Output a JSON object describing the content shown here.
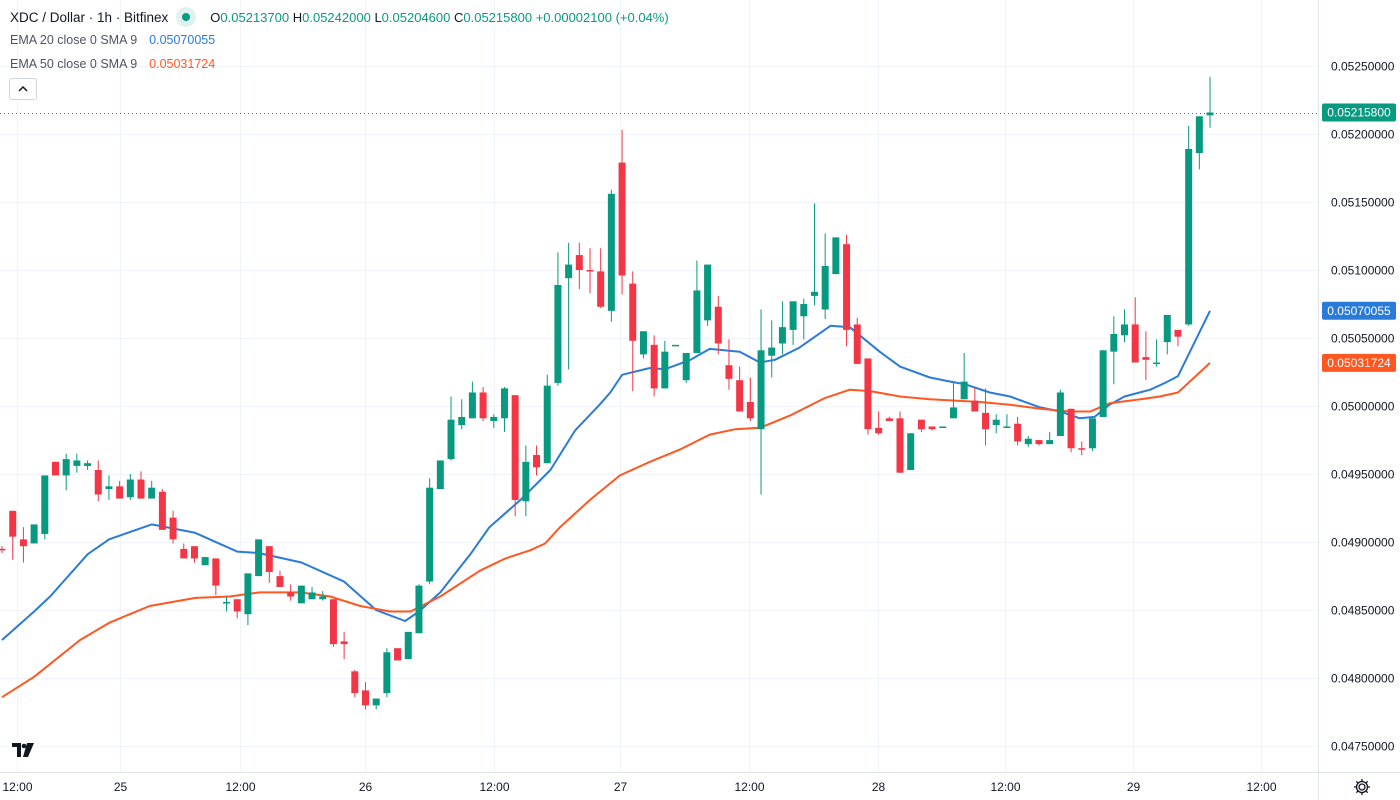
{
  "header": {
    "title": "XDC / Dollar · 1h · Bitfinex",
    "ohlc": [
      {
        "key": "O",
        "value": "0.05213700"
      },
      {
        "key": "H",
        "value": "0.05242000"
      },
      {
        "key": "L",
        "value": "0.05204600"
      },
      {
        "key": "C",
        "value": "0.05215800"
      }
    ],
    "change": "+0.00002100 (+0.04%)"
  },
  "legend": [
    {
      "name": "EMA 20 close 0 SMA 9",
      "value": "0.05070055",
      "color": "#2a7bd8"
    },
    {
      "name": "EMA 50 close 0 SMA 9",
      "value": "0.05031724",
      "color": "#ff5722"
    }
  ],
  "icons": {
    "collapse": "chevron-up-icon",
    "logo": "tradingview-logo",
    "settings": "gear-icon"
  },
  "logo_text": "17",
  "colors": {
    "up": "#089981",
    "down": "#f23645",
    "ema20": "#2a7bd8",
    "ema50": "#ff5722",
    "grid": "#f0f3fa"
  },
  "chart_data": {
    "type": "candlestick",
    "title": "XDC / Dollar · 1h · Bitfinex",
    "interval": "1h",
    "ylim": [
      0.04731,
      0.052985
    ],
    "xlim": [
      -0.19,
      123.1
    ],
    "grid": true,
    "yticks": [
      "0.04750000",
      "0.04800000",
      "0.04850000",
      "0.04900000",
      "0.04950000",
      "0.05000000",
      "0.05050000",
      "0.05100000",
      "0.05150000",
      "0.05200000",
      "0.05250000"
    ],
    "xticks": [
      {
        "label": "12:00",
        "at": 1.4
      },
      {
        "label": "25",
        "at": 11
      },
      {
        "label": "12:00",
        "at": 22.3
      },
      {
        "label": "26",
        "at": 34
      },
      {
        "label": "12:00",
        "at": 46
      },
      {
        "label": "27",
        "at": 57.8
      },
      {
        "label": "12:00",
        "at": 69.9
      },
      {
        "label": "28",
        "at": 81.9
      },
      {
        "label": "12:00",
        "at": 93.8
      },
      {
        "label": "29",
        "at": 105.8
      },
      {
        "label": "12:00",
        "at": 117.8
      }
    ],
    "last_price": {
      "value": 0.052158,
      "label": "0.05215800"
    },
    "candles_format": [
      "open",
      "high",
      "low",
      "close"
    ],
    "candles": [
      [
        0.04895,
        0.04897,
        0.04892,
        0.04894
      ],
      [
        0.04923,
        0.04923,
        0.04887,
        0.04904
      ],
      [
        0.04902,
        0.04911,
        0.04885,
        0.04897
      ],
      [
        0.04899,
        0.04913,
        0.04899,
        0.04913
      ],
      [
        0.04906,
        0.04949,
        0.04902,
        0.04949
      ],
      [
        0.04959,
        0.04959,
        0.04949,
        0.04949
      ],
      [
        0.04949,
        0.04965,
        0.04938,
        0.04961
      ],
      [
        0.04956,
        0.04965,
        0.04951,
        0.0496
      ],
      [
        0.04956,
        0.0496,
        0.04953,
        0.04958
      ],
      [
        0.04953,
        0.0496,
        0.0493,
        0.04935
      ],
      [
        0.04939,
        0.04949,
        0.04931,
        0.04941
      ],
      [
        0.04941,
        0.04945,
        0.04932,
        0.04932
      ],
      [
        0.04933,
        0.0495,
        0.04931,
        0.04946
      ],
      [
        0.04946,
        0.04952,
        0.04932,
        0.04932
      ],
      [
        0.04932,
        0.04945,
        0.04932,
        0.0494
      ],
      [
        0.04937,
        0.04939,
        0.04909,
        0.04909
      ],
      [
        0.04918,
        0.04923,
        0.04899,
        0.04902
      ],
      [
        0.04895,
        0.04899,
        0.04888,
        0.04888
      ],
      [
        0.04897,
        0.04897,
        0.04885,
        0.04888
      ],
      [
        0.04883,
        0.04889,
        0.04883,
        0.04889
      ],
      [
        0.04888,
        0.04888,
        0.04861,
        0.04868
      ],
      [
        0.04855,
        0.0486,
        0.04849,
        0.04856
      ],
      [
        0.04858,
        0.04858,
        0.04844,
        0.04849
      ],
      [
        0.04847,
        0.04877,
        0.04839,
        0.04877
      ],
      [
        0.04875,
        0.04902,
        0.04875,
        0.04902
      ],
      [
        0.04897,
        0.04897,
        0.0487,
        0.04878
      ],
      [
        0.04875,
        0.04879,
        0.04867,
        0.04867
      ],
      [
        0.04863,
        0.04869,
        0.04857,
        0.0486
      ],
      [
        0.04855,
        0.04868,
        0.04855,
        0.04868
      ],
      [
        0.04858,
        0.04867,
        0.04858,
        0.04863
      ],
      [
        0.04858,
        0.04864,
        0.04857,
        0.0486
      ],
      [
        0.04858,
        0.04858,
        0.04823,
        0.04825
      ],
      [
        0.04827,
        0.04834,
        0.04814,
        0.04825
      ],
      [
        0.04805,
        0.04806,
        0.04786,
        0.04789
      ],
      [
        0.04791,
        0.04797,
        0.04777,
        0.0478
      ],
      [
        0.0478,
        0.04785,
        0.04777,
        0.04785
      ],
      [
        0.04789,
        0.04822,
        0.04786,
        0.04819
      ],
      [
        0.04822,
        0.04822,
        0.04813,
        0.04813
      ],
      [
        0.04814,
        0.04834,
        0.04814,
        0.04834
      ],
      [
        0.04833,
        0.04869,
        0.04833,
        0.04868
      ],
      [
        0.04871,
        0.04947,
        0.04869,
        0.0494
      ],
      [
        0.04939,
        0.0496,
        0.04939,
        0.0496
      ],
      [
        0.04961,
        0.05007,
        0.0496,
        0.0499
      ],
      [
        0.04986,
        0.05005,
        0.04983,
        0.04992
      ],
      [
        0.04991,
        0.05018,
        0.04991,
        0.0501
      ],
      [
        0.0501,
        0.05014,
        0.04989,
        0.04991
      ],
      [
        0.04989,
        0.04994,
        0.04984,
        0.04992
      ],
      [
        0.04991,
        0.05014,
        0.04981,
        0.05013
      ],
      [
        0.05008,
        0.05008,
        0.04919,
        0.04931
      ],
      [
        0.0493,
        0.04971,
        0.04919,
        0.04959
      ],
      [
        0.04964,
        0.04971,
        0.04949,
        0.04955
      ],
      [
        0.04958,
        0.05023,
        0.04958,
        0.05015
      ],
      [
        0.05017,
        0.05113,
        0.05015,
        0.05089
      ],
      [
        0.05094,
        0.0512,
        0.05027,
        0.05104
      ],
      [
        0.05111,
        0.0512,
        0.05086,
        0.051
      ],
      [
        0.051,
        0.05116,
        0.05083,
        0.05099
      ],
      [
        0.05099,
        0.05116,
        0.05072,
        0.05073
      ],
      [
        0.0507,
        0.05159,
        0.05062,
        0.05156
      ],
      [
        0.05179,
        0.05203,
        0.05082,
        0.05096
      ],
      [
        0.0509,
        0.05099,
        0.05011,
        0.05048
      ],
      [
        0.05038,
        0.05055,
        0.05035,
        0.05055
      ],
      [
        0.05045,
        0.05052,
        0.05007,
        0.05013
      ],
      [
        0.05013,
        0.05048,
        0.05013,
        0.0504
      ],
      [
        0.05044,
        0.05045,
        0.05044,
        0.05045
      ],
      [
        0.05019,
        0.05039,
        0.05017,
        0.05039
      ],
      [
        0.05039,
        0.05107,
        0.05039,
        0.05085
      ],
      [
        0.05063,
        0.05104,
        0.05059,
        0.05104
      ],
      [
        0.05073,
        0.05081,
        0.05038,
        0.05046
      ],
      [
        0.0503,
        0.05049,
        0.05012,
        0.0502
      ],
      [
        0.05019,
        0.05029,
        0.04996,
        0.04996
      ],
      [
        0.05003,
        0.05021,
        0.04989,
        0.04991
      ],
      [
        0.04983,
        0.05071,
        0.04935,
        0.05041
      ],
      [
        0.05037,
        0.05063,
        0.05021,
        0.05043
      ],
      [
        0.05046,
        0.05077,
        0.05038,
        0.05058
      ],
      [
        0.05056,
        0.05077,
        0.05045,
        0.05077
      ],
      [
        0.05066,
        0.05079,
        0.05049,
        0.05075
      ],
      [
        0.05081,
        0.05149,
        0.05074,
        0.05084
      ],
      [
        0.05071,
        0.05127,
        0.05064,
        0.05103
      ],
      [
        0.05097,
        0.05124,
        0.05097,
        0.05124
      ],
      [
        0.05119,
        0.05126,
        0.05044,
        0.05056
      ],
      [
        0.0506,
        0.05065,
        0.05031,
        0.05031
      ],
      [
        0.05035,
        0.05035,
        0.04979,
        0.04983
      ],
      [
        0.04984,
        0.04996,
        0.04979,
        0.0498
      ],
      [
        0.04991,
        0.04992,
        0.04989,
        0.04989
      ],
      [
        0.04991,
        0.04996,
        0.04951,
        0.04951
      ],
      [
        0.04953,
        0.0498,
        0.04953,
        0.0498
      ],
      [
        0.0499,
        0.0499,
        0.04981,
        0.04983
      ],
      [
        0.04985,
        0.04985,
        0.04982,
        0.04983
      ],
      [
        0.04985,
        0.04985,
        0.04985,
        0.04985
      ],
      [
        0.04991,
        0.05017,
        0.04991,
        0.04999
      ],
      [
        0.05005,
        0.05039,
        0.05005,
        0.05018
      ],
      [
        0.05004,
        0.05014,
        0.04996,
        0.04996
      ],
      [
        0.04995,
        0.05013,
        0.04971,
        0.04983
      ],
      [
        0.04986,
        0.04994,
        0.0498,
        0.0499
      ],
      [
        0.04985,
        0.04994,
        0.04985,
        0.04985
      ],
      [
        0.04987,
        0.04992,
        0.04971,
        0.04974
      ],
      [
        0.04972,
        0.04978,
        0.0497,
        0.04976
      ],
      [
        0.04975,
        0.04975,
        0.04971,
        0.04972
      ],
      [
        0.04972,
        0.04981,
        0.04972,
        0.04975
      ],
      [
        0.04978,
        0.05012,
        0.04978,
        0.0501
      ],
      [
        0.04998,
        0.04998,
        0.04966,
        0.04969
      ],
      [
        0.04969,
        0.04974,
        0.04964,
        0.04968
      ],
      [
        0.04969,
        0.04991,
        0.04967,
        0.04991
      ],
      [
        0.04992,
        0.05041,
        0.04992,
        0.05041
      ],
      [
        0.0504,
        0.05066,
        0.05016,
        0.05053
      ],
      [
        0.05052,
        0.05071,
        0.05047,
        0.0506
      ],
      [
        0.0506,
        0.0508,
        0.05032,
        0.05032
      ],
      [
        0.05036,
        0.05055,
        0.05019,
        0.05034
      ],
      [
        0.05031,
        0.05049,
        0.05029,
        0.05032
      ],
      [
        0.05047,
        0.05067,
        0.05038,
        0.05067
      ],
      [
        0.05056,
        0.05056,
        0.05044,
        0.05051
      ],
      [
        0.0506,
        0.05206,
        0.05059,
        0.05189
      ],
      [
        0.05186,
        0.05213,
        0.05174,
        0.05213
      ],
      [
        0.052137,
        0.05242,
        0.052046,
        0.052158
      ]
    ],
    "series": [
      {
        "name": "EMA 20",
        "last_label": "0.05070055",
        "points": [
          [
            0,
            0.04828
          ],
          [
            3,
            0.04849
          ],
          [
            4.5,
            0.0486
          ],
          [
            8,
            0.04891
          ],
          [
            10,
            0.04902
          ],
          [
            14,
            0.04913
          ],
          [
            18,
            0.04907
          ],
          [
            22,
            0.04893
          ],
          [
            24,
            0.04892
          ],
          [
            28,
            0.04885
          ],
          [
            32,
            0.04871
          ],
          [
            35,
            0.0485
          ],
          [
            37.7,
            0.04842
          ],
          [
            39,
            0.04849
          ],
          [
            41,
            0.04863
          ],
          [
            43.8,
            0.04891
          ],
          [
            45.6,
            0.04911
          ],
          [
            48.5,
            0.04931
          ],
          [
            51.3,
            0.04953
          ],
          [
            53.6,
            0.04982
          ],
          [
            55.9,
            0.05001
          ],
          [
            56.9,
            0.0501
          ],
          [
            58,
            0.05023
          ],
          [
            60.6,
            0.05028
          ],
          [
            62,
            0.05027
          ],
          [
            64.4,
            0.05034
          ],
          [
            66.2,
            0.05042
          ],
          [
            69,
            0.0504
          ],
          [
            70.9,
            0.05032
          ],
          [
            72.3,
            0.05034
          ],
          [
            74.6,
            0.05043
          ],
          [
            77.5,
            0.05059
          ],
          [
            79.3,
            0.05058
          ],
          [
            82.1,
            0.0504
          ],
          [
            84,
            0.05029
          ],
          [
            86.8,
            0.05021
          ],
          [
            88.7,
            0.05018
          ],
          [
            90.1,
            0.05016
          ],
          [
            92.4,
            0.0501
          ],
          [
            94.3,
            0.05007
          ],
          [
            97.1,
            0.04999
          ],
          [
            99,
            0.04996
          ],
          [
            100.8,
            0.04991
          ],
          [
            102.2,
            0.04992
          ],
          [
            103.6,
            0.05001
          ],
          [
            105,
            0.05007
          ],
          [
            107.4,
            0.05012
          ],
          [
            108.8,
            0.05017
          ],
          [
            110,
            0.05022
          ],
          [
            113,
            0.05070055
          ]
        ]
      },
      {
        "name": "EMA 50",
        "last_label": "0.05031724",
        "points": [
          [
            0,
            0.04786
          ],
          [
            3,
            0.04801
          ],
          [
            7.3,
            0.04828
          ],
          [
            10.1,
            0.04841
          ],
          [
            13.8,
            0.04853
          ],
          [
            18.1,
            0.04859
          ],
          [
            21.3,
            0.0486
          ],
          [
            24.1,
            0.04863
          ],
          [
            27.9,
            0.04863
          ],
          [
            30.7,
            0.0486
          ],
          [
            33.5,
            0.04853
          ],
          [
            36.3,
            0.04849
          ],
          [
            38.2,
            0.04849
          ],
          [
            41,
            0.0486
          ],
          [
            44.7,
            0.04879
          ],
          [
            47.1,
            0.04888
          ],
          [
            49.4,
            0.04894
          ],
          [
            50.8,
            0.04899
          ],
          [
            52.2,
            0.04911
          ],
          [
            55,
            0.04931
          ],
          [
            57.8,
            0.04949
          ],
          [
            60.6,
            0.04959
          ],
          [
            63.4,
            0.04968
          ],
          [
            66.2,
            0.04979
          ],
          [
            68.6,
            0.04983
          ],
          [
            70.9,
            0.04984
          ],
          [
            73.7,
            0.04993
          ],
          [
            77,
            0.05006
          ],
          [
            79.3,
            0.05012
          ],
          [
            81.2,
            0.05011
          ],
          [
            84,
            0.05007
          ],
          [
            86.8,
            0.05005
          ],
          [
            91.5,
            0.05003
          ],
          [
            94.3,
            0.05001
          ],
          [
            97.1,
            0.04998
          ],
          [
            99.9,
            0.04996
          ],
          [
            101.8,
            0.04996
          ],
          [
            103.6,
            0.05002
          ],
          [
            106.5,
            0.05005
          ],
          [
            108.3,
            0.05007
          ],
          [
            110,
            0.0501
          ],
          [
            113,
            0.05031724
          ]
        ]
      }
    ]
  }
}
